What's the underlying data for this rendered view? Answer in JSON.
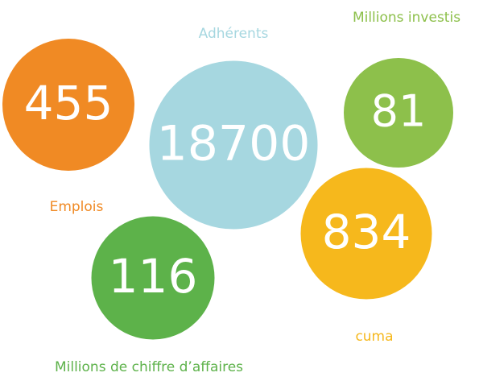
{
  "items": [
    {
      "value": 455,
      "label": "Emplois",
      "color": "#f08a24"
    },
    {
      "value": 81,
      "label": "Millions investis",
      "color": "#8dc04b"
    },
    {
      "value": 18700,
      "label": "Adhérents",
      "color": "#a6d7e0"
    },
    {
      "value": 834,
      "label": "cuma",
      "color": "#f6b81c"
    },
    {
      "value": 116,
      "label": "Millions de chiffre d’affaires",
      "color": "#5db24a"
    }
  ]
}
